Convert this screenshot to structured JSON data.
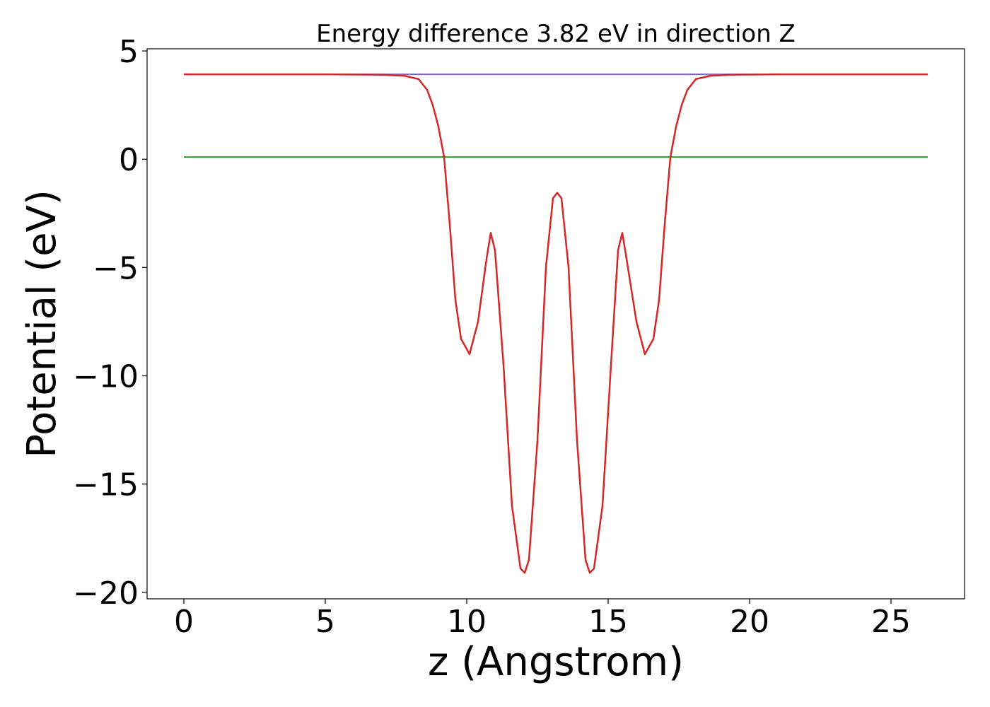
{
  "chart_data": {
    "type": "line",
    "title": "Energy difference 3.82 eV in direction Z",
    "xlabel": "z (Angstrom)",
    "ylabel": "Potential (eV)",
    "xlim": [
      -1.3,
      27.6
    ],
    "ylim": [
      -20.3,
      5.1
    ],
    "xticks": [
      0,
      5,
      10,
      15,
      20,
      25
    ],
    "xtick_labels": [
      "0",
      "5",
      "10",
      "15",
      "20",
      "25"
    ],
    "yticks": [
      5,
      0,
      -5,
      -10,
      -15,
      -20
    ],
    "ytick_labels": [
      "5",
      "0",
      "−5",
      "−10",
      "−15",
      "−20"
    ],
    "grid": false,
    "series": [
      {
        "color": "#1f77b4",
        "x": [
          0,
          26.3
        ],
        "y": [
          3.92,
          3.92
        ]
      },
      {
        "color": "#2ca02c",
        "x": [
          0,
          26.3
        ],
        "y": [
          0.1,
          0.1
        ]
      },
      {
        "color": "#9467bd",
        "x": [
          0,
          7.0,
          19.3,
          26.3
        ],
        "y": [
          3.92,
          3.92,
          3.92,
          3.92
        ]
      },
      {
        "color": "#d62728",
        "x": [
          0,
          5,
          7,
          7.8,
          8.3,
          8.6,
          8.8,
          9.0,
          9.2,
          9.4,
          9.6,
          9.8,
          10.1,
          10.4,
          10.7,
          10.85,
          11.0,
          11.3,
          11.6,
          11.9,
          12.05,
          12.2,
          12.5,
          12.8,
          13.05,
          13.2,
          13.35,
          13.6,
          13.9,
          14.2,
          14.35,
          14.5,
          14.8,
          15.1,
          15.35,
          15.5,
          15.65,
          16.0,
          16.3,
          16.6,
          16.8,
          17.0,
          17.2,
          17.4,
          17.6,
          17.8,
          18.1,
          18.6,
          19.3,
          21,
          26.3
        ],
        "y": [
          3.92,
          3.92,
          3.9,
          3.85,
          3.7,
          3.2,
          2.5,
          1.5,
          0.1,
          -3.0,
          -6.5,
          -8.3,
          -9.0,
          -7.5,
          -4.6,
          -3.4,
          -4.2,
          -9.5,
          -16.0,
          -18.9,
          -19.1,
          -18.5,
          -13.0,
          -5.0,
          -1.8,
          -1.55,
          -1.8,
          -5.0,
          -13.0,
          -18.5,
          -19.1,
          -18.9,
          -16.0,
          -9.5,
          -4.2,
          -3.4,
          -4.6,
          -7.5,
          -9.0,
          -8.3,
          -6.5,
          -3.0,
          0.1,
          1.5,
          2.5,
          3.2,
          3.7,
          3.85,
          3.9,
          3.92,
          3.92
        ]
      }
    ]
  }
}
